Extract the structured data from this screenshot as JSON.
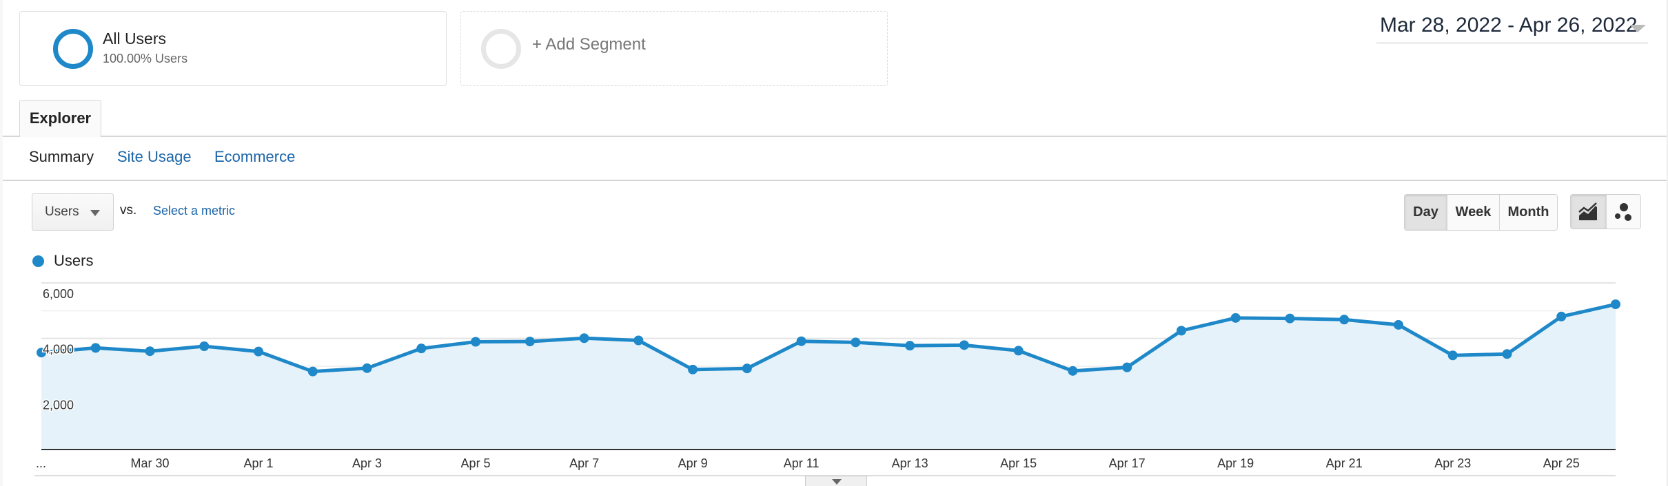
{
  "segments": [
    {
      "title": "All Users",
      "subtitle": "100.00% Users",
      "color": "#1e88c9"
    },
    {
      "title": "+ Add Segment"
    }
  ],
  "date_range": "Mar 28, 2022 - Apr 26, 2022",
  "tabs": [
    {
      "label": "Explorer",
      "active": true
    }
  ],
  "subtabs": [
    {
      "label": "Summary",
      "active": true
    },
    {
      "label": "Site Usage"
    },
    {
      "label": "Ecommerce"
    }
  ],
  "metric_select": {
    "value": "Users",
    "vs": "vs.",
    "compare_link": "Select a metric"
  },
  "granularity": [
    {
      "label": "Day",
      "active": true
    },
    {
      "label": "Week"
    },
    {
      "label": "Month"
    }
  ],
  "chart_types": [
    {
      "icon": "line-chart-icon",
      "active": true
    },
    {
      "icon": "motion-chart-icon"
    }
  ],
  "legend": {
    "label": "Users",
    "color": "#1e88c9"
  },
  "chart_data": {
    "type": "area",
    "series": [
      {
        "name": "Users",
        "color": "#1e88c9",
        "values": [
          3490,
          3660,
          3540,
          3720,
          3530,
          2810,
          2930,
          3640,
          3880,
          3890,
          4010,
          3930,
          2880,
          2920,
          3900,
          3860,
          3740,
          3760,
          3560,
          2830,
          2960,
          4280,
          4740,
          4720,
          4680,
          4490,
          3390,
          3440,
          4790,
          5230
        ]
      }
    ],
    "x": [
      "Mar 28",
      "Mar 29",
      "Mar 30",
      "Mar 31",
      "Apr 1",
      "Apr 2",
      "Apr 3",
      "Apr 4",
      "Apr 5",
      "Apr 6",
      "Apr 7",
      "Apr 8",
      "Apr 9",
      "Apr 10",
      "Apr 11",
      "Apr 12",
      "Apr 13",
      "Apr 14",
      "Apr 15",
      "Apr 16",
      "Apr 17",
      "Apr 18",
      "Apr 19",
      "Apr 20",
      "Apr 21",
      "Apr 22",
      "Apr 23",
      "Apr 24",
      "Apr 25",
      "Apr 26"
    ],
    "x_tick_labels": [
      "...",
      "Mar 30",
      "Apr 1",
      "Apr 3",
      "Apr 5",
      "Apr 7",
      "Apr 9",
      "Apr 11",
      "Apr 13",
      "Apr 15",
      "Apr 17",
      "Apr 19",
      "Apr 21",
      "Apr 23",
      "Apr 25"
    ],
    "y_tick_labels": [
      "6,000",
      "4,000",
      "2,000"
    ],
    "y_ticks": [
      6000,
      4000,
      2000
    ],
    "ylim": [
      0,
      6000
    ],
    "grid": true
  }
}
